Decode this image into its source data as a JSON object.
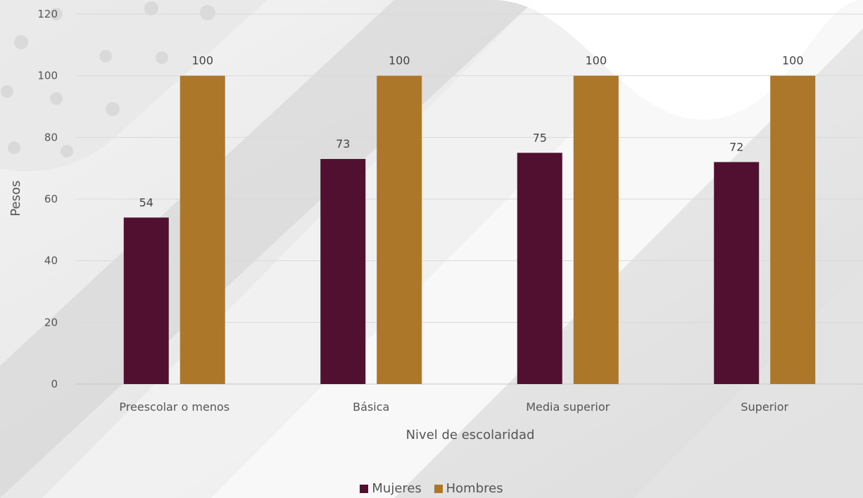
{
  "colors": {
    "mujeres": "#521030",
    "hombres": "#ad772a"
  },
  "chart_data": {
    "type": "bar",
    "title": "",
    "xlabel": "Nivel de escolaridad",
    "ylabel": "Pesos",
    "categories": [
      "Preescolar o menos",
      "Básica",
      "Media superior",
      "Superior"
    ],
    "series": [
      {
        "name": "Mujeres",
        "values": [
          54,
          73,
          75,
          72
        ]
      },
      {
        "name": "Hombres",
        "values": [
          100,
          100,
          100,
          100
        ]
      }
    ],
    "ylim": [
      0,
      120
    ],
    "yticks": [
      0,
      20,
      40,
      60,
      80,
      100,
      120
    ],
    "grid": true,
    "legend_position": "bottom",
    "data_labels": true
  }
}
